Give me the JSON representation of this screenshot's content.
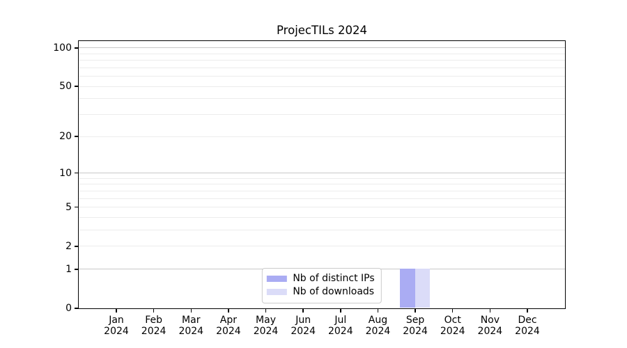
{
  "chart_data": {
    "type": "bar",
    "title": "ProjecTILs 2024",
    "y_scale": "log1p",
    "ylim": [
      0,
      113
    ],
    "grid": true,
    "legend_position": "lower center",
    "categories": [
      "Jan 2024",
      "Feb 2024",
      "Mar 2024",
      "Apr 2024",
      "May 2024",
      "Jun 2024",
      "Jul 2024",
      "Aug 2024",
      "Sep 2024",
      "Oct 2024",
      "Nov 2024",
      "Dec 2024"
    ],
    "series": [
      {
        "name": "Nb of distinct IPs",
        "color": "#aaacf3",
        "values": [
          0,
          0,
          0,
          0,
          0,
          0,
          0,
          0,
          1,
          0,
          0,
          0
        ]
      },
      {
        "name": "Nb of downloads",
        "color": "#dbdcf8",
        "values": [
          0,
          0,
          0,
          0,
          0,
          0,
          0,
          0,
          1,
          0,
          0,
          0
        ]
      }
    ],
    "y_ticks": [
      0,
      1,
      2,
      5,
      10,
      20,
      50,
      100
    ],
    "gridlines_major": [
      1,
      10,
      100
    ],
    "gridlines_minor": [
      2,
      3,
      4,
      5,
      6,
      7,
      8,
      9,
      20,
      30,
      40,
      50,
      60,
      70,
      80,
      90
    ],
    "colors": {
      "grid_major": "#c8c8c8",
      "grid_minor": "#ececec",
      "spine": "#000000",
      "background": "#ffffff"
    }
  }
}
